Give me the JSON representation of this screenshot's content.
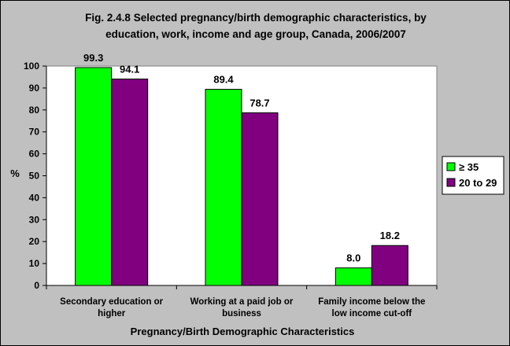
{
  "chart_data": {
    "type": "bar",
    "title": [
      "Fig. 2.4.8 Selected pregnancy/birth demographic characteristics, by",
      "education, work, income and age group, Canada, 2006/2007"
    ],
    "xlabel": "Pregnancy/Birth Demographic Characteristics",
    "ylabel": "%",
    "ylim": [
      0,
      100
    ],
    "yticks": [
      "0",
      "10",
      "20",
      "30",
      "40",
      "50",
      "60",
      "70",
      "80",
      "90",
      "100"
    ],
    "categories": [
      [
        "Secondary education or",
        "higher"
      ],
      [
        "Working at a paid job or",
        "business"
      ],
      [
        "Family income below the",
        "low income cut-off"
      ]
    ],
    "series": [
      {
        "name": "≥ 35",
        "color": "#00ff00",
        "values": [
          99.3,
          89.4,
          8.0
        ],
        "labels": [
          "99.3",
          "89.4",
          "8.0"
        ]
      },
      {
        "name": "20 to 29",
        "color": "#800080",
        "values": [
          94.1,
          78.7,
          18.2
        ],
        "labels": [
          "94.1",
          "78.7",
          "18.2"
        ]
      }
    ],
    "grid": false,
    "legend": "right",
    "plot_background": "#ffffff",
    "chart_background": "#c0c0c0"
  }
}
